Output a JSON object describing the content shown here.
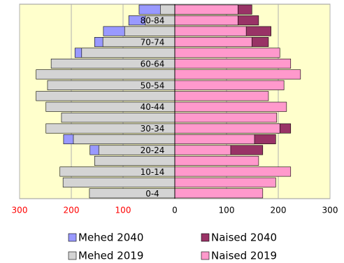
{
  "chart_data": {
    "type": "pyramid",
    "categories": [
      "0-4",
      null,
      "10-14",
      null,
      "20-24",
      null,
      "30-34",
      null,
      "40-44",
      null,
      "50-54",
      null,
      "60-64",
      null,
      "70-74",
      null,
      "80-84",
      null
    ],
    "series": [
      {
        "name": "Mehed 2040",
        "color": "#9999ff",
        "side": "left",
        "values": [
          null,
          null,
          null,
          null,
          164,
          215,
          null,
          null,
          null,
          null,
          null,
          null,
          null,
          193,
          155,
          138,
          89,
          69
        ]
      },
      {
        "name": "Naised 2040",
        "color": "#993366",
        "side": "right",
        "values": [
          null,
          null,
          null,
          null,
          170,
          195,
          224,
          null,
          null,
          null,
          null,
          null,
          null,
          null,
          181,
          186,
          162,
          149
        ]
      },
      {
        "name": "Mehed 2019",
        "color": "#d4d4d4",
        "side": "left",
        "values": [
          165,
          216,
          222,
          155,
          147,
          196,
          249,
          219,
          249,
          268,
          246,
          268,
          239,
          180,
          139,
          97,
          57,
          28
        ]
      },
      {
        "name": "Naised 2019",
        "color": "#ff99cc",
        "side": "right",
        "values": [
          170,
          195,
          224,
          162,
          108,
          154,
          203,
          197,
          216,
          181,
          211,
          243,
          224,
          203,
          149,
          138,
          122,
          122
        ]
      }
    ],
    "xlim": [
      -300,
      300
    ],
    "xticks": [
      {
        "value": -300,
        "label": "300"
      },
      {
        "value": -200,
        "label": "200"
      },
      {
        "value": -100,
        "label": "100"
      },
      0,
      100,
      200,
      300
    ],
    "grid": true,
    "background": "#ffffcc",
    "left_tick_color": "#ff0000"
  }
}
